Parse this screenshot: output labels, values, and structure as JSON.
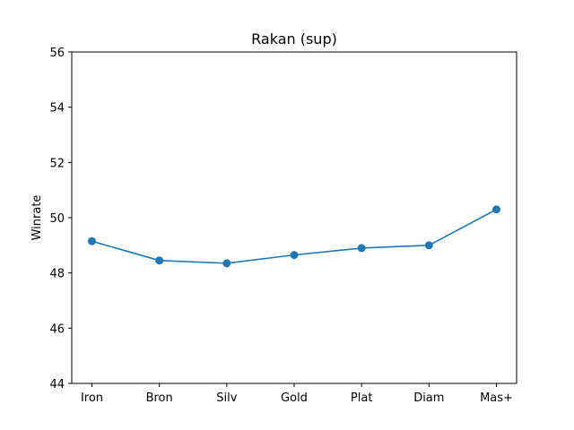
{
  "chart_data": {
    "type": "line",
    "title": "Rakan (sup)",
    "xlabel": "",
    "ylabel": "Winrate",
    "categories": [
      "Iron",
      "Bron",
      "Silv",
      "Gold",
      "Plat",
      "Diam",
      "Mas+"
    ],
    "series": [
      {
        "values": [
          49.15,
          48.45,
          48.35,
          48.65,
          48.9,
          49.0,
          50.3
        ]
      }
    ],
    "ylim": [
      44,
      56
    ],
    "yticks": [
      44,
      46,
      48,
      50,
      52,
      54,
      56
    ],
    "grid": false,
    "colors": {
      "line": "#1f77b4",
      "marker": "#1f77b4",
      "axes": "#000000"
    }
  }
}
